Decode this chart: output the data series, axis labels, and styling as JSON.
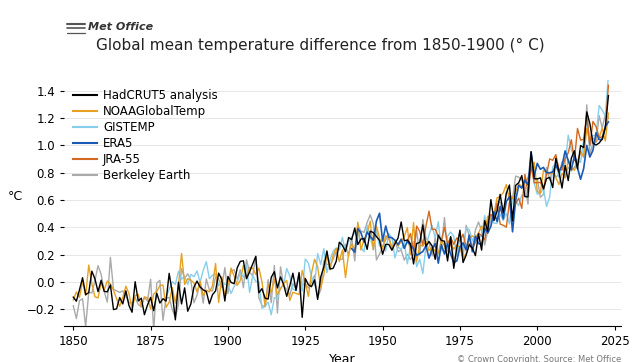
{
  "title": "Global mean temperature difference from 1850-1900 (° C)",
  "xlabel": "Year",
  "ylabel": "°C",
  "xlim": [
    1847,
    2027
  ],
  "ylim": [
    -0.32,
    1.48
  ],
  "yticks": [
    -0.2,
    0.0,
    0.2,
    0.4,
    0.6,
    0.8,
    1.0,
    1.2,
    1.4
  ],
  "xticks": [
    1850,
    1875,
    1900,
    1925,
    1950,
    1975,
    2000,
    2025
  ],
  "background_color": "#ffffff",
  "series": {
    "HadCRUT5 analysis": {
      "color": "#000000",
      "lw": 1.0,
      "zorder": 5
    },
    "NOAAGlobalTemp": {
      "color": "#e8a020",
      "lw": 1.0,
      "zorder": 4
    },
    "GISTEMP": {
      "color": "#87ceeb",
      "lw": 1.0,
      "zorder": 3
    },
    "ERA5": {
      "color": "#1a5ab5",
      "lw": 1.2,
      "zorder": 4
    },
    "JRA-55": {
      "color": "#d2691e",
      "lw": 1.0,
      "zorder": 4
    },
    "Berkeley Earth": {
      "color": "#aaaaaa",
      "lw": 1.0,
      "zorder": 2
    }
  },
  "copyright_text": "© Crown Copyright. Source: Met Office",
  "logo_text": "Met Office",
  "title_fontsize": 11,
  "label_fontsize": 9,
  "tick_fontsize": 8.5,
  "legend_fontsize": 8.5
}
